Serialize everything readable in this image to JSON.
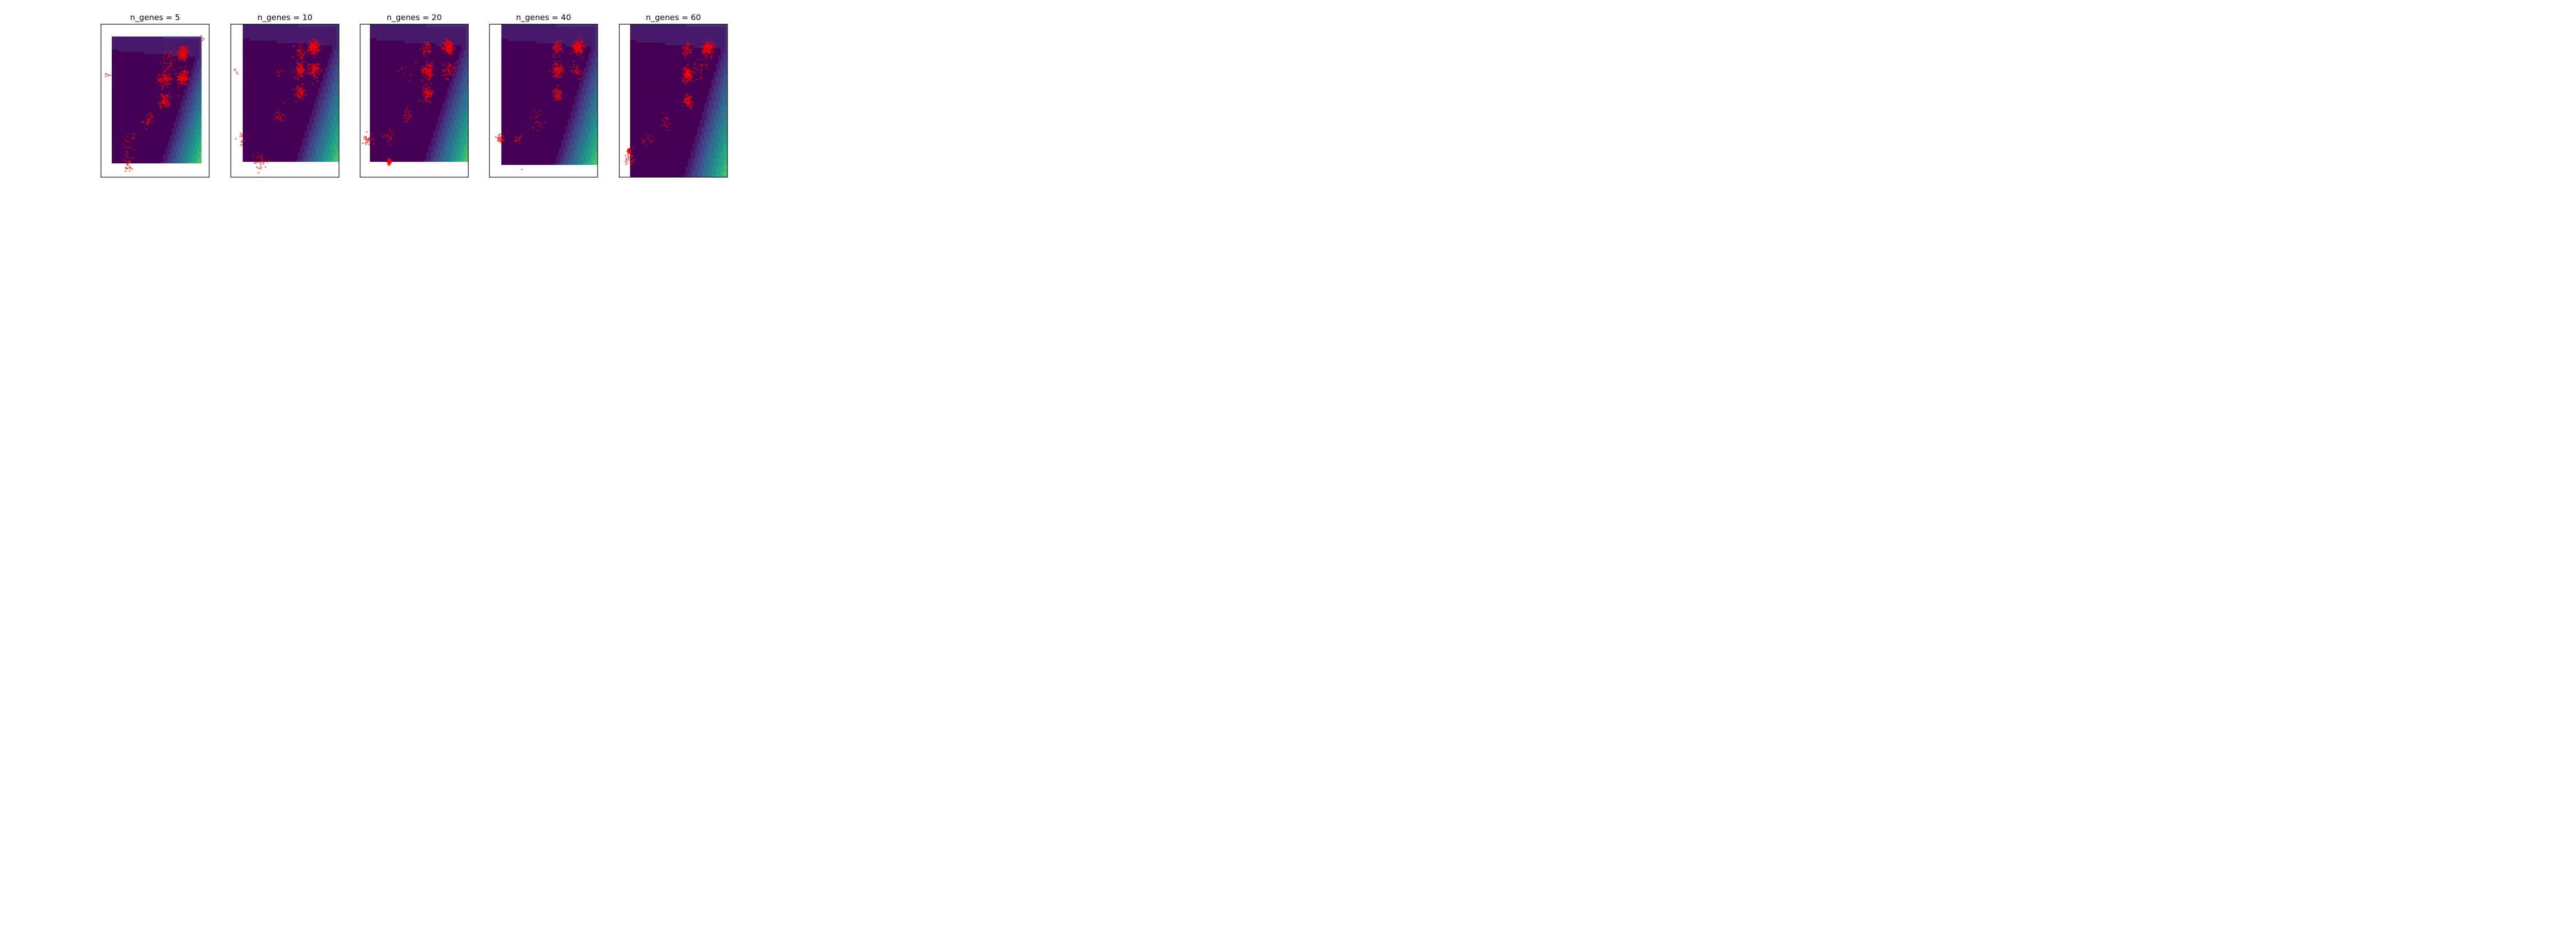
{
  "chart_data": [
    {
      "type": "scatter",
      "title": "n_genes = 5",
      "xlim": [
        0,
        1
      ],
      "ylim": [
        0,
        1
      ],
      "background": "contourf",
      "grid": false,
      "point_color": "#ff0000",
      "clusters": [
        {
          "x": 0.76,
          "y": 0.81,
          "n": 120,
          "spread": 0.035
        },
        {
          "x": 0.76,
          "y": 0.65,
          "n": 110,
          "spread": 0.035
        },
        {
          "x": 0.59,
          "y": 0.64,
          "n": 80,
          "spread": 0.035
        },
        {
          "x": 0.59,
          "y": 0.5,
          "n": 70,
          "spread": 0.03
        },
        {
          "x": 0.62,
          "y": 0.76,
          "n": 30,
          "spread": 0.05
        },
        {
          "x": 0.44,
          "y": 0.37,
          "n": 25,
          "spread": 0.03
        },
        {
          "x": 0.26,
          "y": 0.23,
          "n": 15,
          "spread": 0.03
        },
        {
          "x": 0.26,
          "y": 0.09,
          "n": 30,
          "spread": 0.04
        },
        {
          "x": 0.06,
          "y": 0.67,
          "n": 6,
          "spread": 0.02
        },
        {
          "x": 0.93,
          "y": 0.86,
          "n": 5,
          "spread": 0.04
        }
      ],
      "domain": {
        "x0": 0.1,
        "x1": 0.93,
        "y0": 0.09,
        "y1": 0.92
      }
    },
    {
      "type": "scatter",
      "title": "n_genes = 10",
      "xlim": [
        0,
        1
      ],
      "ylim": [
        0,
        1
      ],
      "background": "contourf",
      "grid": false,
      "point_color": "#ff0000",
      "clusters": [
        {
          "x": 0.77,
          "y": 0.85,
          "n": 130,
          "spread": 0.03
        },
        {
          "x": 0.77,
          "y": 0.7,
          "n": 80,
          "spread": 0.03
        },
        {
          "x": 0.64,
          "y": 0.7,
          "n": 80,
          "spread": 0.03
        },
        {
          "x": 0.64,
          "y": 0.55,
          "n": 60,
          "spread": 0.03
        },
        {
          "x": 0.64,
          "y": 0.82,
          "n": 35,
          "spread": 0.04
        },
        {
          "x": 0.46,
          "y": 0.4,
          "n": 20,
          "spread": 0.03
        },
        {
          "x": 0.28,
          "y": 0.1,
          "n": 30,
          "spread": 0.04
        },
        {
          "x": 0.09,
          "y": 0.25,
          "n": 12,
          "spread": 0.03
        },
        {
          "x": 0.06,
          "y": 0.69,
          "n": 4,
          "spread": 0.02
        },
        {
          "x": 0.45,
          "y": 0.72,
          "n": 6,
          "spread": 0.06
        }
      ],
      "domain": {
        "x0": 0.11,
        "x1": 1.0,
        "y0": 0.1,
        "y1": 1.0
      }
    },
    {
      "type": "scatter",
      "title": "n_genes = 20",
      "xlim": [
        0,
        1
      ],
      "ylim": [
        0,
        1
      ],
      "background": "contourf",
      "grid": false,
      "point_color": "#ff0000",
      "clusters": [
        {
          "x": 0.82,
          "y": 0.85,
          "n": 130,
          "spread": 0.03
        },
        {
          "x": 0.62,
          "y": 0.84,
          "n": 40,
          "spread": 0.03
        },
        {
          "x": 0.63,
          "y": 0.7,
          "n": 90,
          "spread": 0.035
        },
        {
          "x": 0.82,
          "y": 0.7,
          "n": 40,
          "spread": 0.035
        },
        {
          "x": 0.63,
          "y": 0.55,
          "n": 70,
          "spread": 0.03
        },
        {
          "x": 0.43,
          "y": 0.4,
          "n": 20,
          "spread": 0.03
        },
        {
          "x": 0.07,
          "y": 0.25,
          "n": 30,
          "spread": 0.03
        },
        {
          "x": 0.27,
          "y": 0.25,
          "n": 15,
          "spread": 0.03
        },
        {
          "x": 0.27,
          "y": 0.1,
          "n": 60,
          "spread": 0.012
        },
        {
          "x": 0.45,
          "y": 0.7,
          "n": 8,
          "spread": 0.06
        }
      ],
      "domain": {
        "x0": 0.09,
        "x1": 1.0,
        "y0": 0.1,
        "y1": 1.0
      }
    },
    {
      "type": "scatter",
      "title": "n_genes = 40",
      "xlim": [
        0,
        1
      ],
      "ylim": [
        0,
        1
      ],
      "background": "contourf",
      "grid": false,
      "point_color": "#ff0000",
      "clusters": [
        {
          "x": 0.82,
          "y": 0.85,
          "n": 140,
          "spread": 0.03
        },
        {
          "x": 0.63,
          "y": 0.85,
          "n": 50,
          "spread": 0.03
        },
        {
          "x": 0.63,
          "y": 0.7,
          "n": 80,
          "spread": 0.03
        },
        {
          "x": 0.81,
          "y": 0.7,
          "n": 30,
          "spread": 0.03
        },
        {
          "x": 0.63,
          "y": 0.54,
          "n": 50,
          "spread": 0.025
        },
        {
          "x": 0.44,
          "y": 0.38,
          "n": 18,
          "spread": 0.04
        },
        {
          "x": 0.1,
          "y": 0.25,
          "n": 30,
          "spread": 0.025
        },
        {
          "x": 0.27,
          "y": 0.25,
          "n": 12,
          "spread": 0.03
        },
        {
          "x": 0.3,
          "y": 0.05,
          "n": 1,
          "spread": 0.0
        }
      ],
      "domain": {
        "x0": 0.11,
        "x1": 1.0,
        "y0": 0.08,
        "y1": 1.0
      }
    },
    {
      "type": "scatter",
      "title": "n_genes = 60",
      "xlim": [
        0,
        1
      ],
      "ylim": [
        0,
        1
      ],
      "background": "contourf",
      "grid": false,
      "point_color": "#ff0000",
      "clusters": [
        {
          "x": 0.82,
          "y": 0.84,
          "n": 130,
          "spread": 0.03
        },
        {
          "x": 0.63,
          "y": 0.84,
          "n": 40,
          "spread": 0.03
        },
        {
          "x": 0.63,
          "y": 0.67,
          "n": 110,
          "spread": 0.03
        },
        {
          "x": 0.64,
          "y": 0.5,
          "n": 60,
          "spread": 0.025
        },
        {
          "x": 0.43,
          "y": 0.37,
          "n": 16,
          "spread": 0.04
        },
        {
          "x": 0.26,
          "y": 0.24,
          "n": 12,
          "spread": 0.03
        },
        {
          "x": 0.09,
          "y": 0.17,
          "n": 40,
          "spread": 0.012
        },
        {
          "x": 0.1,
          "y": 0.12,
          "n": 25,
          "spread": 0.03
        },
        {
          "x": 0.74,
          "y": 0.72,
          "n": 25,
          "spread": 0.04
        }
      ],
      "domain": {
        "x0": 0.1,
        "x1": 1.0,
        "y0": 0.0,
        "y1": 1.0
      }
    }
  ]
}
